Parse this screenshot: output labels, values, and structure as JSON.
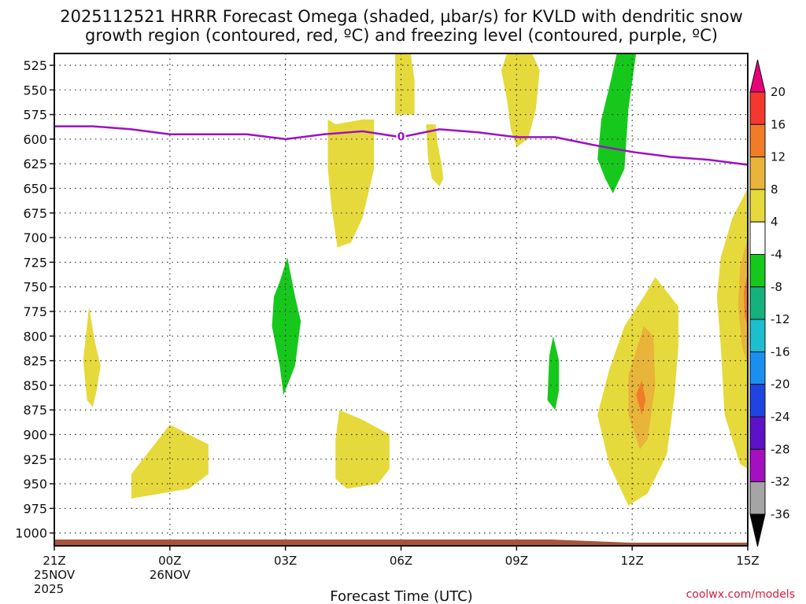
{
  "chart_data": {
    "type": "heatmap",
    "title_line1": "2025112521 HRRR Forecast Omega (shaded, µbar/s) for KVLD with dendritic snow",
    "title_line2": "growth region (contoured, red, ºC) and freezing level (contoured, purple, ºC)",
    "xlabel": "Forecast Time (UTC)",
    "ylabel": "",
    "credit": "coolwx.com/models",
    "x_range": [
      0,
      18
    ],
    "x_units": "forecast hours from 21Z",
    "y_range": [
      513,
      1013
    ],
    "y_units": "hPa",
    "y_ticks": [
      525,
      550,
      575,
      600,
      625,
      650,
      675,
      700,
      725,
      750,
      775,
      800,
      825,
      850,
      875,
      900,
      925,
      950,
      975,
      1000
    ],
    "x_ticks": [
      {
        "x": 0,
        "label": "21Z",
        "sub1": "25NOV",
        "sub2": "2025"
      },
      {
        "x": 3,
        "label": "00Z",
        "sub1": "26NOV",
        "sub2": ""
      },
      {
        "x": 6,
        "label": "03Z",
        "sub1": "",
        "sub2": ""
      },
      {
        "x": 9,
        "label": "06Z",
        "sub1": "",
        "sub2": ""
      },
      {
        "x": 12,
        "label": "09Z",
        "sub1": "",
        "sub2": ""
      },
      {
        "x": 15,
        "label": "12Z",
        "sub1": "",
        "sub2": ""
      },
      {
        "x": 18,
        "label": "15Z",
        "sub1": "",
        "sub2": ""
      }
    ],
    "colorbar": {
      "levels": [
        20,
        16,
        12,
        8,
        4,
        -4,
        -8,
        -12,
        -16,
        -20,
        -24,
        -28,
        -32,
        -36
      ],
      "colors": [
        "#e8007a",
        "#f4372f",
        "#f07c28",
        "#e8b43a",
        "#e6d93c",
        "#ffffff",
        "#16c81c",
        "#15b27e",
        "#1dbfcf",
        "#1b8ff0",
        "#1f44e0",
        "#5e12c7",
        "#a40fc0",
        "#a5a5a5",
        "#050505"
      ]
    },
    "freezing_level": {
      "label": "0",
      "color": "#9c11c4",
      "x": [
        0,
        1,
        2,
        3,
        4,
        5,
        6,
        7,
        8,
        9,
        10,
        11,
        12,
        13,
        14,
        15,
        16,
        17,
        18
      ],
      "p": [
        587,
        587,
        590,
        595,
        595,
        595,
        600,
        595,
        592,
        598,
        590,
        593,
        598,
        598,
        606,
        613,
        618,
        621,
        626
      ]
    },
    "omega_regions": [
      {
        "category": "4 to 8",
        "color": "#e6d93c",
        "points": [
          [
            0.9,
            770
          ],
          [
            1.05,
            805
          ],
          [
            1.2,
            830
          ],
          [
            1.1,
            855
          ],
          [
            1.0,
            872
          ],
          [
            0.85,
            865
          ],
          [
            0.75,
            825
          ]
        ]
      },
      {
        "category": "4 to 8",
        "color": "#e6d93c",
        "points": [
          [
            2.0,
            940
          ],
          [
            2.5,
            915
          ],
          [
            3.0,
            890
          ],
          [
            4.0,
            910
          ],
          [
            4.0,
            940
          ],
          [
            3.5,
            955
          ],
          [
            2.0,
            965
          ]
        ]
      },
      {
        "category": "4 to 8",
        "color": "#e6d93c",
        "points": [
          [
            7.1,
            580
          ],
          [
            7.3,
            585
          ],
          [
            8.0,
            580
          ],
          [
            8.3,
            580
          ],
          [
            8.3,
            630
          ],
          [
            8.0,
            680
          ],
          [
            7.7,
            705
          ],
          [
            7.35,
            710
          ],
          [
            7.2,
            670
          ],
          [
            7.1,
            630
          ]
        ]
      },
      {
        "category": "4 to 8",
        "color": "#e6d93c",
        "points": [
          [
            8.85,
            512
          ],
          [
            9.25,
            512
          ],
          [
            9.35,
            540
          ],
          [
            9.35,
            575
          ],
          [
            8.85,
            575
          ]
        ]
      },
      {
        "category": "4 to 8",
        "color": "#e6d93c",
        "points": [
          [
            9.65,
            585
          ],
          [
            9.9,
            585
          ],
          [
            9.95,
            605
          ],
          [
            10.05,
            625
          ],
          [
            10.1,
            640
          ],
          [
            10.0,
            648
          ],
          [
            9.8,
            640
          ],
          [
            9.7,
            620
          ]
        ]
      },
      {
        "category": "4 to 8",
        "color": "#e6d93c",
        "points": [
          [
            11.75,
            512
          ],
          [
            12.4,
            512
          ],
          [
            12.6,
            530
          ],
          [
            12.5,
            570
          ],
          [
            12.3,
            600
          ],
          [
            12.0,
            608
          ],
          [
            11.85,
            590
          ],
          [
            11.75,
            560
          ],
          [
            11.6,
            530
          ]
        ]
      },
      {
        "category": "4 to 8",
        "color": "#e6d93c",
        "points": [
          [
            7.4,
            875
          ],
          [
            8.0,
            885
          ],
          [
            8.7,
            900
          ],
          [
            8.7,
            935
          ],
          [
            8.4,
            950
          ],
          [
            7.6,
            955
          ],
          [
            7.3,
            945
          ],
          [
            7.3,
            905
          ]
        ]
      },
      {
        "category": "4 to 8",
        "color": "#e6d93c",
        "points": [
          [
            14.4,
            835
          ],
          [
            14.8,
            790
          ],
          [
            15.3,
            760
          ],
          [
            15.6,
            740
          ],
          [
            16.2,
            770
          ],
          [
            16.2,
            810
          ],
          [
            16.1,
            860
          ],
          [
            15.9,
            920
          ],
          [
            15.4,
            960
          ],
          [
            14.9,
            972
          ],
          [
            14.4,
            930
          ],
          [
            14.1,
            880
          ]
        ]
      },
      {
        "category": "8 to 12",
        "color": "#e8b43a",
        "points": [
          [
            14.9,
            840
          ],
          [
            15.3,
            790
          ],
          [
            15.55,
            800
          ],
          [
            15.6,
            850
          ],
          [
            15.4,
            905
          ],
          [
            15.2,
            915
          ],
          [
            14.9,
            880
          ]
        ]
      },
      {
        "category": "12 to 16",
        "color": "#f07c28",
        "points": [
          [
            15.1,
            860
          ],
          [
            15.25,
            845
          ],
          [
            15.35,
            865
          ],
          [
            15.25,
            880
          ]
        ]
      },
      {
        "category": "4 to 8",
        "color": "#e6d93c",
        "points": [
          [
            18.0,
            650
          ],
          [
            17.6,
            680
          ],
          [
            17.3,
            720
          ],
          [
            17.2,
            760
          ],
          [
            17.3,
            810
          ],
          [
            17.4,
            880
          ],
          [
            17.6,
            905
          ],
          [
            17.8,
            930
          ],
          [
            18.0,
            935
          ]
        ]
      },
      {
        "category": "8 to 12",
        "color": "#e8b43a",
        "points": [
          [
            18.0,
            700
          ],
          [
            17.8,
            730
          ],
          [
            17.75,
            770
          ],
          [
            17.85,
            810
          ],
          [
            18.0,
            830
          ]
        ]
      },
      {
        "category": "12 to 16",
        "color": "#f07c28",
        "points": [
          [
            18.0,
            735
          ],
          [
            17.9,
            755
          ],
          [
            17.92,
            780
          ],
          [
            18.0,
            790
          ]
        ]
      },
      {
        "category": "-4 to -8",
        "color": "#16c81c",
        "points": [
          [
            6.05,
            720
          ],
          [
            6.25,
            760
          ],
          [
            6.4,
            785
          ],
          [
            6.25,
            830
          ],
          [
            5.95,
            860
          ],
          [
            5.85,
            830
          ],
          [
            5.65,
            790
          ],
          [
            5.7,
            760
          ],
          [
            5.85,
            745
          ]
        ]
      },
      {
        "category": "-4 to -8",
        "color": "#16c81c",
        "points": [
          [
            14.6,
            512
          ],
          [
            15.1,
            512
          ],
          [
            14.9,
            570
          ],
          [
            14.8,
            630
          ],
          [
            14.5,
            655
          ],
          [
            14.3,
            640
          ],
          [
            14.1,
            620
          ],
          [
            14.2,
            580
          ],
          [
            14.45,
            540
          ]
        ]
      },
      {
        "category": "-4 to -8",
        "color": "#16c81c",
        "points": [
          [
            12.95,
            800
          ],
          [
            13.1,
            825
          ],
          [
            13.1,
            855
          ],
          [
            13.0,
            875
          ],
          [
            12.8,
            865
          ],
          [
            12.85,
            820
          ]
        ]
      }
    ]
  }
}
